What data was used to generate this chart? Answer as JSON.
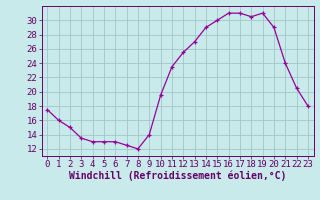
{
  "x": [
    0,
    1,
    2,
    3,
    4,
    5,
    6,
    7,
    8,
    9,
    10,
    11,
    12,
    13,
    14,
    15,
    16,
    17,
    18,
    19,
    20,
    21,
    22,
    23
  ],
  "y": [
    17.5,
    16,
    15,
    13.5,
    13,
    13,
    13,
    12.5,
    12,
    14,
    19.5,
    23.5,
    25.5,
    27,
    29,
    30,
    31,
    31,
    30.5,
    31,
    29,
    24,
    20.5,
    18
  ],
  "line_color": "#990099",
  "marker": "+",
  "bg_color": "#c8eaea",
  "grid_color": "#a0c8c8",
  "xlabel": "Windchill (Refroidissement éolien,°C)",
  "ylim": [
    11,
    32
  ],
  "xlim": [
    -0.5,
    23.5
  ],
  "yticks": [
    12,
    14,
    16,
    18,
    20,
    22,
    24,
    26,
    28,
    30
  ],
  "xticks": [
    0,
    1,
    2,
    3,
    4,
    5,
    6,
    7,
    8,
    9,
    10,
    11,
    12,
    13,
    14,
    15,
    16,
    17,
    18,
    19,
    20,
    21,
    22,
    23
  ],
  "axis_color": "#660066",
  "label_color": "#660066",
  "font_size": 6.5,
  "xlabel_fontsize": 7,
  "marker_size": 3,
  "linewidth": 0.9
}
